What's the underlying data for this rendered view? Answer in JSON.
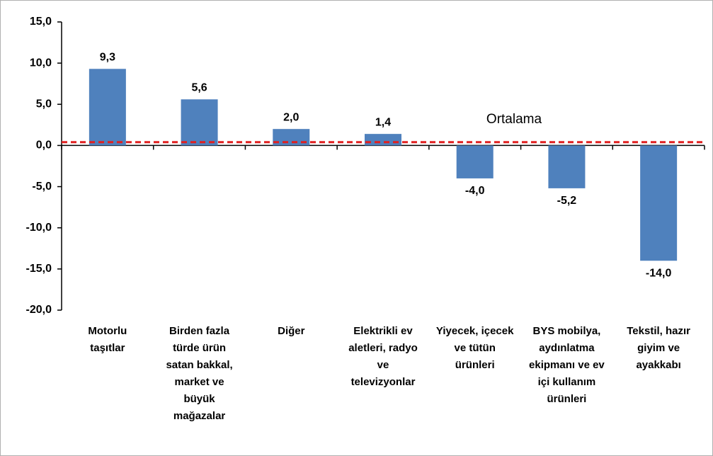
{
  "chart_data": {
    "type": "bar",
    "categories": [
      "Motorlu\ntaşıtlar",
      "Birden fazla\ntürde ürün\nsatan bakkal,\nmarket ve\nbüyük\nmağazalar",
      "Diğer",
      "Elektrikli ev\naletleri, radyo\nve\ntelevizyonlar",
      "Yiyecek, içecek\nve tütün\nürünleri",
      "BYS mobilya,\naydınlatma\nekipmanı ve ev\niçi kullanım\nürünleri",
      "Tekstil, hazır\ngiyim ve\nayakkabı"
    ],
    "values": [
      9.3,
      5.6,
      2.0,
      1.4,
      -4.0,
      -5.2,
      -14.0
    ],
    "value_labels": [
      "9,3",
      "5,6",
      "2,0",
      "1,4",
      "-4,0",
      "-5,2",
      "-14,0"
    ],
    "color": "#4f81bd",
    "ylim": [
      -20,
      15
    ],
    "yticks": [
      {
        "value": 15,
        "label": "15,0"
      },
      {
        "value": 10,
        "label": "10,0"
      },
      {
        "value": 5,
        "label": "5,0"
      },
      {
        "value": 0,
        "label": "0,0"
      },
      {
        "value": -5,
        "label": "-5,0"
      },
      {
        "value": -10,
        "label": "-10,0"
      },
      {
        "value": -15,
        "label": "-15,0"
      },
      {
        "value": -20,
        "label": "-20,0"
      }
    ],
    "average_line": {
      "label": "Ortalama",
      "value": 0.4,
      "color": "#e02020"
    }
  }
}
